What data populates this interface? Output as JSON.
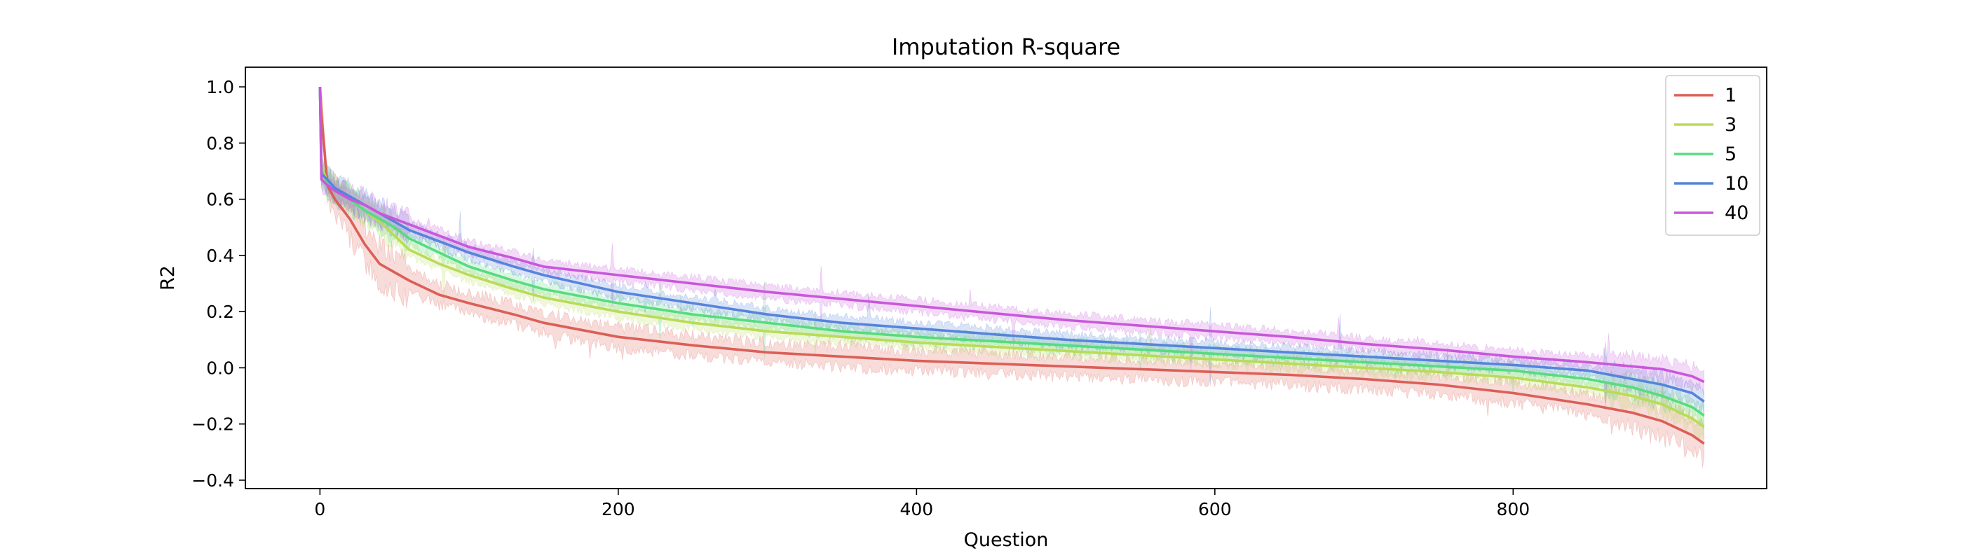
{
  "chart_data": {
    "type": "line",
    "title": "Imputation R-square",
    "xlabel": "Question",
    "ylabel": "R2",
    "xlim": [
      -50,
      970
    ],
    "ylim": [
      -0.43,
      1.07
    ],
    "xticks": [
      0,
      200,
      400,
      600,
      800
    ],
    "xtick_labels": [
      "0",
      "200",
      "400",
      "600",
      "800"
    ],
    "yticks": [
      -0.4,
      -0.2,
      0.0,
      0.2,
      0.4,
      0.6,
      0.8,
      1.0
    ],
    "ytick_labels": [
      "−0.4",
      "−0.2",
      "0.0",
      "0.2",
      "0.4",
      "0.6",
      "0.8",
      "1.0"
    ],
    "grid": false,
    "legend_position": "upper right",
    "shaded_band_behind_each_line": true,
    "series": [
      {
        "name": "1",
        "color": "#db5f57",
        "x": [
          0,
          1,
          5,
          10,
          20,
          30,
          40,
          50,
          60,
          80,
          100,
          130,
          150,
          200,
          250,
          300,
          350,
          400,
          450,
          500,
          550,
          600,
          650,
          700,
          750,
          800,
          850,
          880,
          900,
          920,
          928
        ],
        "y": [
          1.0,
          0.9,
          0.65,
          0.6,
          0.53,
          0.44,
          0.37,
          0.34,
          0.31,
          0.26,
          0.23,
          0.19,
          0.16,
          0.11,
          0.08,
          0.055,
          0.04,
          0.025,
          0.015,
          0.005,
          -0.005,
          -0.015,
          -0.025,
          -0.04,
          -0.06,
          -0.09,
          -0.13,
          -0.16,
          -0.19,
          -0.24,
          -0.27
        ]
      },
      {
        "name": "3",
        "color": "#b9db57",
        "x": [
          0,
          1,
          5,
          10,
          20,
          30,
          40,
          50,
          60,
          80,
          100,
          130,
          150,
          200,
          250,
          300,
          350,
          400,
          450,
          500,
          550,
          600,
          650,
          700,
          750,
          800,
          850,
          880,
          900,
          920,
          928
        ],
        "y": [
          1.0,
          0.72,
          0.66,
          0.63,
          0.6,
          0.56,
          0.52,
          0.47,
          0.42,
          0.37,
          0.33,
          0.28,
          0.25,
          0.2,
          0.16,
          0.13,
          0.11,
          0.09,
          0.075,
          0.06,
          0.045,
          0.03,
          0.015,
          0.0,
          -0.015,
          -0.035,
          -0.07,
          -0.1,
          -0.13,
          -0.18,
          -0.21
        ]
      },
      {
        "name": "5",
        "color": "#57db80",
        "x": [
          0,
          1,
          5,
          10,
          20,
          30,
          40,
          50,
          60,
          80,
          100,
          130,
          150,
          200,
          250,
          300,
          350,
          400,
          450,
          500,
          550,
          600,
          650,
          700,
          750,
          800,
          850,
          880,
          900,
          920,
          928
        ],
        "y": [
          1.0,
          0.7,
          0.66,
          0.63,
          0.6,
          0.56,
          0.53,
          0.5,
          0.46,
          0.41,
          0.36,
          0.31,
          0.28,
          0.23,
          0.19,
          0.16,
          0.13,
          0.11,
          0.095,
          0.08,
          0.065,
          0.05,
          0.035,
          0.02,
          0.005,
          -0.01,
          -0.04,
          -0.07,
          -0.1,
          -0.14,
          -0.17
        ]
      },
      {
        "name": "10",
        "color": "#5784db",
        "x": [
          0,
          1,
          5,
          10,
          20,
          30,
          40,
          50,
          60,
          80,
          100,
          130,
          150,
          200,
          250,
          300,
          350,
          400,
          450,
          500,
          550,
          600,
          650,
          700,
          750,
          800,
          850,
          880,
          900,
          920,
          928
        ],
        "y": [
          1.0,
          0.69,
          0.67,
          0.64,
          0.61,
          0.58,
          0.55,
          0.52,
          0.49,
          0.45,
          0.41,
          0.36,
          0.33,
          0.27,
          0.23,
          0.19,
          0.16,
          0.14,
          0.12,
          0.1,
          0.085,
          0.07,
          0.055,
          0.04,
          0.025,
          0.01,
          -0.01,
          -0.04,
          -0.06,
          -0.09,
          -0.12
        ]
      },
      {
        "name": "40",
        "color": "#c957db",
        "x": [
          0,
          1,
          5,
          10,
          20,
          30,
          40,
          50,
          60,
          80,
          100,
          130,
          150,
          200,
          250,
          300,
          350,
          400,
          450,
          500,
          550,
          600,
          650,
          700,
          750,
          800,
          850,
          880,
          900,
          920,
          928
        ],
        "y": [
          1.0,
          0.67,
          0.65,
          0.63,
          0.6,
          0.58,
          0.55,
          0.53,
          0.51,
          0.47,
          0.43,
          0.39,
          0.36,
          0.33,
          0.3,
          0.27,
          0.245,
          0.22,
          0.195,
          0.17,
          0.15,
          0.13,
          0.11,
          0.085,
          0.065,
          0.04,
          0.02,
          0.005,
          -0.005,
          -0.03,
          -0.05
        ]
      }
    ]
  }
}
